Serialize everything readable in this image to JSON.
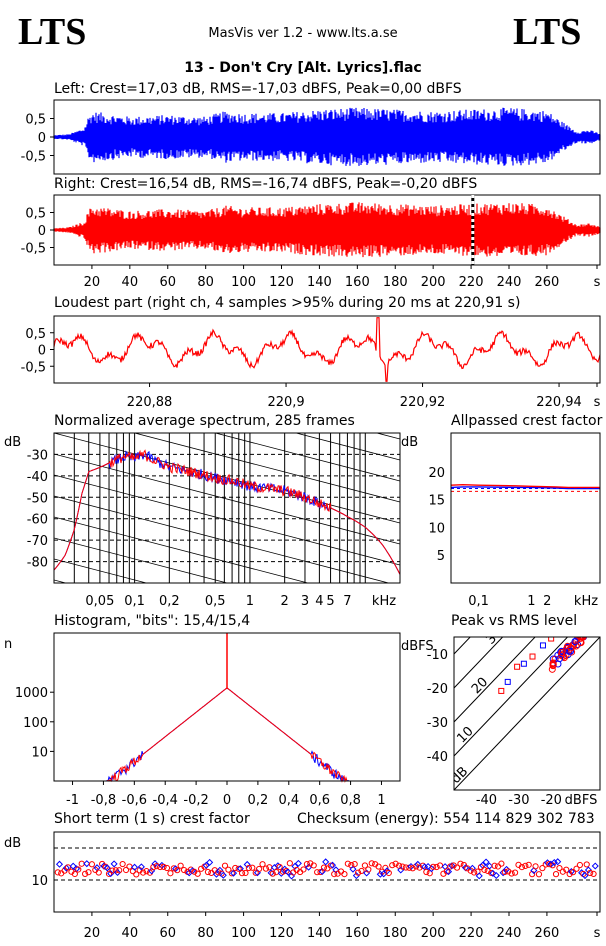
{
  "header": {
    "logo_left": "LTS",
    "logo_right": "LTS",
    "app_title": "MasVis ver 1.2 - www.lts.a.se",
    "file_title": "13 - Don't Cry [Alt. Lyrics].flac"
  },
  "colors": {
    "left": "#0000ff",
    "right": "#ff0000",
    "grid": "#000000"
  },
  "chart_data": [
    {
      "id": "left_waveform",
      "type": "area",
      "title": "Left: Crest=17,03 dB, RMS=-17,03 dBFS, Peak=0,00 dBFS",
      "xlim": [
        0,
        288
      ],
      "ylim": [
        -1,
        1
      ],
      "yticks": [
        "0,5",
        "0",
        "-0,5"
      ],
      "envelope_x": [
        0,
        8,
        16,
        18,
        20,
        40,
        60,
        80,
        90,
        100,
        120,
        140,
        160,
        180,
        200,
        220,
        240,
        260,
        270,
        276,
        282,
        288
      ],
      "envelope_y": [
        0.05,
        0.08,
        0.25,
        0.55,
        0.7,
        0.55,
        0.6,
        0.55,
        0.7,
        0.65,
        0.65,
        0.75,
        0.8,
        0.75,
        0.7,
        0.75,
        0.8,
        0.72,
        0.35,
        0.15,
        0.2,
        0.1
      ]
    },
    {
      "id": "right_waveform",
      "type": "area",
      "title": "Right: Crest=16,54 dB, RMS=-16,74 dBFS, Peak=-0,20 dBFS",
      "xlim": [
        0,
        288
      ],
      "ylim": [
        -1,
        1
      ],
      "yticks": [
        "0,5",
        "0",
        "-0,5"
      ],
      "xticks": [
        "20",
        "40",
        "60",
        "80",
        "100",
        "120",
        "140",
        "160",
        "180",
        "200",
        "220",
        "240",
        "260",
        "s"
      ],
      "marker_x": 220.91,
      "envelope_x": [
        0,
        8,
        16,
        18,
        20,
        40,
        60,
        80,
        90,
        100,
        120,
        140,
        160,
        180,
        200,
        220,
        240,
        260,
        270,
        276,
        282,
        288
      ],
      "envelope_y": [
        0.05,
        0.08,
        0.25,
        0.55,
        0.7,
        0.55,
        0.6,
        0.55,
        0.7,
        0.65,
        0.65,
        0.75,
        0.8,
        0.75,
        0.7,
        0.75,
        0.8,
        0.72,
        0.35,
        0.15,
        0.2,
        0.1
      ]
    },
    {
      "id": "loudest_part",
      "type": "line",
      "title": "Loudest part (right ch, 4 samples >95% during 20 ms at 220,91 s)",
      "xlim": [
        220.866,
        220.946
      ],
      "ylim": [
        -1,
        1
      ],
      "yticks": [
        "0,5",
        "0",
        "-0,5"
      ],
      "xticks": [
        "220,88",
        "220,9",
        "220,92",
        "220,94",
        "s"
      ],
      "xtick_values": [
        220.88,
        220.9,
        220.92,
        220.94
      ],
      "peak_x": 220.9135,
      "peak_y": 0.95
    },
    {
      "id": "spectrum",
      "type": "line",
      "title": "Normalized average spectrum, 285 frames",
      "ylabel": "dB",
      "xlabel": "kHz",
      "scale_x": "log",
      "xlim": [
        0.02,
        20
      ],
      "ylim": [
        -90,
        -20
      ],
      "yticks": [
        "-30",
        "-40",
        "-50",
        "-60",
        "-70",
        "-80"
      ],
      "ytick_values": [
        -30,
        -40,
        -50,
        -60,
        -70,
        -80
      ],
      "xticks": [
        "0,05",
        "0,1",
        "0,2",
        "0,5",
        "1",
        "2",
        "3",
        "4",
        "5",
        "7",
        "kHz"
      ],
      "xtick_values": [
        0.05,
        0.1,
        0.2,
        0.5,
        1,
        2,
        3,
        4,
        5,
        7
      ],
      "curve_f": [
        0.02,
        0.025,
        0.03,
        0.035,
        0.04,
        0.06,
        0.08,
        0.1,
        0.12,
        0.15,
        0.2,
        0.3,
        0.5,
        0.8,
        1,
        1.5,
        2,
        3,
        4,
        5,
        7,
        10,
        14,
        20
      ],
      "curve_db": [
        -84,
        -77,
        -65,
        -48,
        -38,
        -34,
        -31,
        -32,
        -30,
        -33,
        -36,
        -38,
        -41,
        -43,
        -45,
        -46,
        -47,
        -50,
        -53,
        -55,
        -59,
        -64,
        -72,
        -86
      ]
    },
    {
      "id": "allpassed_crest",
      "type": "line",
      "title": "Allpassed crest factor",
      "ylabel": "dB",
      "xlabel": "kHz",
      "scale_x": "log",
      "xlim": [
        0.03,
        20
      ],
      "ylim": [
        0,
        27
      ],
      "yticks": [
        "20",
        "15",
        "10",
        "5"
      ],
      "ytick_values": [
        20,
        15,
        10,
        5
      ],
      "xticks": [
        "0,1",
        "1",
        "2",
        "kHz"
      ],
      "xtick_values": [
        0.1,
        1,
        2
      ],
      "series": [
        {
          "x": [
            0.03,
            0.05,
            0.1,
            0.5,
            1,
            3,
            5,
            20
          ],
          "y": [
            17.2,
            17.3,
            17.3,
            17.2,
            17.2,
            17.1,
            17.0,
            17.0
          ]
        },
        {
          "x": [
            0.03,
            0.05,
            0.1,
            0.5,
            1,
            3,
            5,
            20
          ],
          "y": [
            17.6,
            17.7,
            17.6,
            17.5,
            17.4,
            17.3,
            17.2,
            17.2
          ]
        }
      ],
      "reference_y": [
        17.0,
        16.5
      ]
    },
    {
      "id": "histogram",
      "type": "line",
      "title": "Histogram, \"bits\": 15,4/15,4",
      "ylabel": "n",
      "scale_y": "log",
      "xlim": [
        -1.12,
        1.12
      ],
      "ylim": [
        1,
        100000
      ],
      "yticks": [
        "1000",
        "100",
        "10"
      ],
      "ytick_values": [
        1000,
        100,
        10
      ],
      "xticks": [
        "-1",
        "-0,8",
        "-0,6",
        "-0,4",
        "-0,2",
        "0",
        "0,2",
        "0,4",
        "0,6",
        "0,8",
        "1"
      ],
      "xtick_values": [
        -1,
        -0.8,
        -0.6,
        -0.4,
        -0.2,
        0,
        0.2,
        0.4,
        0.6,
        0.8,
        1
      ],
      "peak_at_zero": 1400,
      "tails_end": 0.99
    },
    {
      "id": "peak_vs_rms",
      "type": "scatter",
      "title": "Peak vs RMS level",
      "ylabel": "dBFS",
      "xlabel": "dBFS",
      "xlim": [
        -50,
        -5
      ],
      "ylim": [
        -50,
        -5
      ],
      "yticks": [
        "-10",
        "-20",
        "-30",
        "-40"
      ],
      "ytick_values": [
        -10,
        -20,
        -30,
        -40
      ],
      "xticks": [
        "-40",
        "-30",
        "-20",
        "dBFS"
      ],
      "xtick_values": [
        -40,
        -30,
        -20
      ],
      "diagonal_labels": [
        "40",
        "30",
        "20",
        "10",
        "0 dB"
      ],
      "diagonal_offsets": [
        40,
        30,
        20,
        10,
        0
      ],
      "cluster_rms": [
        -20,
        -10
      ],
      "cluster_peak": [
        -14,
        -5
      ]
    },
    {
      "id": "short_term_crest",
      "type": "scatter",
      "title": "Short term (1 s) crest factor",
      "annotation": "Checksum (energy):   554 114 829 302 783",
      "ylabel": "dB",
      "xlim": [
        0,
        288
      ],
      "ylim": [
        0,
        25
      ],
      "yticks": [
        "10"
      ],
      "ytick_values": [
        10
      ],
      "dashed_y": [
        10,
        20
      ],
      "xticks": [
        "20",
        "40",
        "60",
        "80",
        "100",
        "120",
        "140",
        "160",
        "180",
        "200",
        "220",
        "240",
        "260",
        "s"
      ],
      "mean_crest": 13.5
    }
  ]
}
